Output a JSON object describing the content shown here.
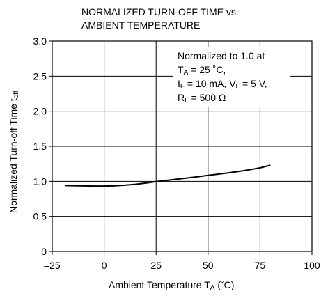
{
  "chart_data": {
    "type": "line",
    "title_lines": [
      "NORMALIZED TURN-OFF TIME vs.",
      "AMBIENT TEMPERATURE"
    ],
    "xlabel": {
      "text": "Ambient Temperature T",
      "sub": "A",
      "suffix": " (˚C)"
    },
    "ylabel": {
      "text": "Normalized Turn-off Time t",
      "sub": "off"
    },
    "xlim": [
      -25,
      100
    ],
    "ylim": [
      0,
      3.0
    ],
    "x_ticks": [
      -25,
      0,
      25,
      50,
      75,
      100
    ],
    "x_tick_labels": [
      "–25",
      "0",
      "25",
      "50",
      "75",
      "100"
    ],
    "y_ticks": [
      0,
      0.5,
      1.0,
      1.5,
      2.0,
      2.5,
      3.0
    ],
    "y_tick_labels": [
      "0",
      "0.5",
      "1.0",
      "1.5",
      "2.0",
      "2.5",
      "3.0"
    ],
    "grid": true,
    "annotation": {
      "line1": "Normalized to 1.0 at",
      "line2": {
        "a": "T",
        "a_sub": "A",
        "b": " = 25 ˚C,"
      },
      "line3": {
        "a": "I",
        "a_sub": "F",
        "b": " = 10 mA, V",
        "b_sub": "L",
        "c": " = 5 V,"
      },
      "line4": {
        "a": "R",
        "a_sub": "L",
        "b": " = 500 Ω"
      }
    },
    "series": [
      {
        "x": [
          -19,
          -15,
          -10,
          -5,
          0,
          5,
          10,
          15,
          20,
          25,
          30,
          35,
          40,
          45,
          50,
          55,
          60,
          65,
          70,
          75,
          80
        ],
        "y": [
          0.94,
          0.938,
          0.935,
          0.933,
          0.933,
          0.937,
          0.945,
          0.958,
          0.975,
          0.995,
          1.013,
          1.03,
          1.048,
          1.066,
          1.085,
          1.103,
          1.122,
          1.142,
          1.165,
          1.192,
          1.23
        ]
      }
    ]
  }
}
